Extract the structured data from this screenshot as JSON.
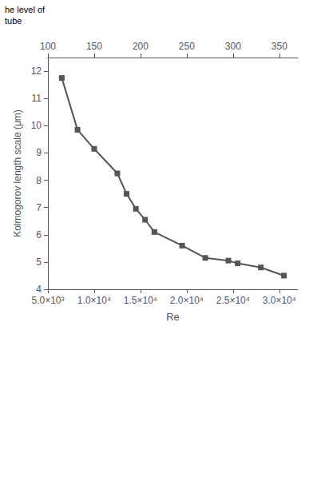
{
  "chart_data": {
    "type": "line",
    "xlabel": "Re",
    "ylabel": "Kolmogorov length scale (μm)",
    "annotations": [
      "he level of",
      "tube"
    ],
    "x": [
      6500,
      8200,
      10000,
      12500,
      13500,
      14500,
      15500,
      16500,
      19500,
      22000,
      24500,
      25500,
      28000,
      30500
    ],
    "values": [
      11.75,
      9.85,
      9.15,
      8.25,
      7.5,
      6.95,
      6.55,
      6.1,
      5.6,
      5.15,
      5.05,
      4.95,
      4.8,
      4.5
    ],
    "color": "#555555",
    "marker": "square",
    "xlim": [
      5000,
      32000
    ],
    "xticks": [
      {
        "value": 5000,
        "label": "5.0×10³"
      },
      {
        "value": 10000,
        "label": "1.0×10⁴"
      },
      {
        "value": 15000,
        "label": "1.5×10⁴"
      },
      {
        "value": 20000,
        "label": "2.0×10⁴"
      },
      {
        "value": 25000,
        "label": "2.5×10⁴"
      },
      {
        "value": 30000,
        "label": "3.0×10⁴"
      }
    ],
    "x2lim": [
      5000,
      32000
    ],
    "x2ticks": [
      {
        "value": 5000,
        "label": "100"
      },
      {
        "value": 10000,
        "label": "150"
      },
      {
        "value": 15000,
        "label": "200"
      },
      {
        "value": 20000,
        "label": "250"
      },
      {
        "value": 25000,
        "label": "300"
      },
      {
        "value": 30000,
        "label": "350"
      }
    ],
    "ylim": [
      4.0,
      12.5
    ],
    "yticks": [
      4,
      5,
      6,
      7,
      8,
      9,
      10,
      11,
      12
    ],
    "grid": false
  }
}
